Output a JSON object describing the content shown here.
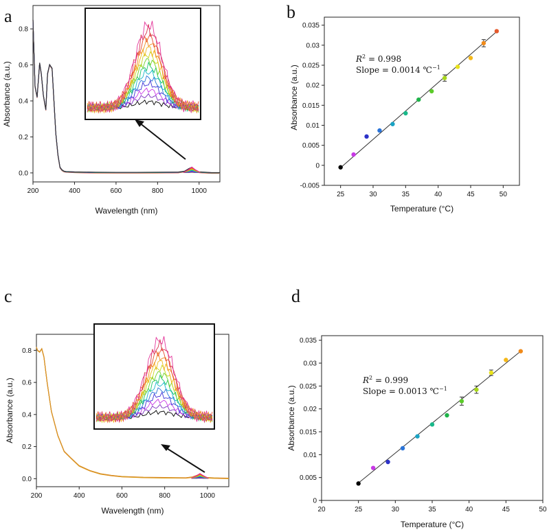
{
  "colors": {
    "spectrum": [
      "#000000",
      "#7b2cbf",
      "#c838e6",
      "#3a2fd6",
      "#2a74d9",
      "#19b7c9",
      "#19c46a",
      "#6fd12a",
      "#c8d61c",
      "#f0b81a",
      "#f08a1a",
      "#e84c2d",
      "#d8344f",
      "#e33399"
    ],
    "temp_points": [
      "#000000",
      "#c838e6",
      "#2c32c8",
      "#2a74d9",
      "#19a3c4",
      "#19b98a",
      "#1fb34a",
      "#5ccb2a",
      "#a8d61c",
      "#e9e21c",
      "#f4b81a",
      "#f08a1a",
      "#e55a2d",
      "#c8325a"
    ]
  },
  "chart_data": [
    {
      "id": "a",
      "panel_label": "a",
      "type": "line",
      "title": "",
      "xlabel": "Wavelength (nm)",
      "ylabel": "Absorbance (a.u.)",
      "xlim": [
        200,
        1100
      ],
      "ylim": [
        -0.05,
        0.93
      ],
      "xticks": [
        200,
        400,
        600,
        800,
        1000
      ],
      "yticks": [
        0.0,
        0.2,
        0.4,
        0.6,
        0.8
      ],
      "xtick_labels": [
        "200",
        "400",
        "600",
        "800",
        "1000"
      ],
      "ytick_labels": [
        "0.0",
        "0.2",
        "0.4",
        "0.6",
        "0.8"
      ],
      "series": [
        {
          "name": "spectrum",
          "x": [
            200,
            210,
            220,
            232,
            240,
            250,
            262,
            270,
            280,
            292,
            300,
            310,
            320,
            330,
            340,
            350,
            360,
            400,
            500,
            600,
            700,
            800,
            900,
            930,
            950,
            965,
            980,
            1000,
            1030,
            1060,
            1100
          ],
          "y": [
            0.85,
            0.48,
            0.42,
            0.61,
            0.55,
            0.43,
            0.35,
            0.55,
            0.6,
            0.58,
            0.42,
            0.22,
            0.1,
            0.03,
            0.015,
            0.008,
            0.006,
            0.004,
            0.002,
            0.0015,
            0.0015,
            0.002,
            0.003,
            0.008,
            0.022,
            0.03,
            0.015,
            0.004,
            0.002,
            0.0,
            0.0
          ]
        }
      ],
      "peak_x": 965,
      "inset": "zoomed NIR absorbance peak, 14 temperatures"
    },
    {
      "id": "b",
      "panel_label": "b",
      "type": "scatter",
      "title": "",
      "xlabel": "Temperature (°C)",
      "ylabel": "Absorbance (a.u.)",
      "xlim": [
        22.5,
        52.5
      ],
      "ylim": [
        -0.005,
        0.037
      ],
      "xticks": [
        25,
        30,
        35,
        40,
        45,
        50
      ],
      "yticks": [
        -0.005,
        0,
        0.005,
        0.01,
        0.015,
        0.02,
        0.025,
        0.03,
        0.035
      ],
      "xtick_labels": [
        "25",
        "30",
        "35",
        "40",
        "45",
        "50"
      ],
      "ytick_labels": [
        "-0.005",
        "0",
        "0.005",
        "0.01",
        "0.015",
        "0.02",
        "0.025",
        "0.03",
        "0.035"
      ],
      "x": [
        25,
        27,
        29,
        31,
        33,
        35,
        37,
        39,
        41,
        43,
        45,
        47,
        49
      ],
      "y": [
        -0.0005,
        0.0027,
        0.0072,
        0.0087,
        0.0103,
        0.013,
        0.0164,
        0.0185,
        0.0218,
        0.0246,
        0.0268,
        0.0305,
        0.0335
      ],
      "error": [
        0,
        0,
        0,
        0,
        0,
        0,
        0,
        0,
        0.0008,
        0,
        0,
        0.0009,
        0
      ],
      "fit": {
        "x": [
          25,
          49
        ],
        "y": [
          -0.0006,
          0.0334
        ]
      },
      "r2_label": "R",
      "r2_value": "= 0.998",
      "slope_text": "Slope = 0.0014 ℃",
      "slope_exp": "−1"
    },
    {
      "id": "c",
      "panel_label": "c",
      "type": "line",
      "title": "",
      "xlabel": "Wavelength (nm)",
      "ylabel": "Absorbance (a.u.)",
      "xlim": [
        200,
        1100
      ],
      "ylim": [
        -0.05,
        0.9
      ],
      "xticks": [
        200,
        400,
        600,
        800,
        1000
      ],
      "yticks": [
        0.0,
        0.2,
        0.4,
        0.6,
        0.8
      ],
      "xtick_labels": [
        "200",
        "400",
        "600",
        "800",
        "1000"
      ],
      "ytick_labels": [
        "0.0",
        "0.2",
        "0.4",
        "0.6",
        "0.8"
      ],
      "series": [
        {
          "name": "spectrum",
          "x": [
            200,
            205,
            215,
            225,
            235,
            250,
            270,
            300,
            330,
            360,
            400,
            450,
            500,
            550,
            600,
            700,
            800,
            900,
            930,
            950,
            965,
            980,
            1000,
            1030,
            1060,
            1100
          ],
          "y": [
            0.82,
            0.8,
            0.79,
            0.81,
            0.76,
            0.6,
            0.42,
            0.27,
            0.17,
            0.13,
            0.08,
            0.05,
            0.03,
            0.02,
            0.013,
            0.008,
            0.006,
            0.005,
            0.01,
            0.02,
            0.028,
            0.015,
            0.006,
            0.004,
            0.003,
            0.002
          ]
        }
      ],
      "peak_x": 965,
      "inset": "zoomed NIR absorbance peak, 14 temperatures"
    },
    {
      "id": "d",
      "panel_label": "d",
      "type": "scatter",
      "title": "",
      "xlabel": "Temperature (°C)",
      "ylabel": "Absorbance (a.u.)",
      "xlim": [
        20,
        50
      ],
      "ylim": [
        0,
        0.036
      ],
      "xticks": [
        20,
        25,
        30,
        35,
        40,
        45,
        50
      ],
      "yticks": [
        0,
        0.005,
        0.01,
        0.015,
        0.02,
        0.025,
        0.03,
        0.035
      ],
      "xtick_labels": [
        "20",
        "25",
        "30",
        "35",
        "40",
        "45",
        "50"
      ],
      "ytick_labels": [
        "0",
        "0.005",
        "0.01",
        "0.015",
        "0.02",
        "0.025",
        "0.03",
        "0.035"
      ],
      "x": [
        25,
        27,
        29,
        31,
        33,
        35,
        37,
        39,
        41,
        43,
        45,
        47
      ],
      "y": [
        0.0037,
        0.0071,
        0.0084,
        0.0114,
        0.014,
        0.0166,
        0.0186,
        0.0217,
        0.0242,
        0.0279,
        0.0307,
        0.0326
      ],
      "error": [
        0,
        0,
        0,
        0,
        0,
        0,
        0,
        0.0009,
        0.0008,
        0.0006,
        0,
        0
      ],
      "fit": {
        "x": [
          25,
          47
        ],
        "y": [
          0.0038,
          0.0326
        ]
      },
      "r2_label": "R",
      "r2_value": "= 0.999",
      "slope_text": "Slope = 0.0013 ℃",
      "slope_exp": "−1"
    }
  ]
}
